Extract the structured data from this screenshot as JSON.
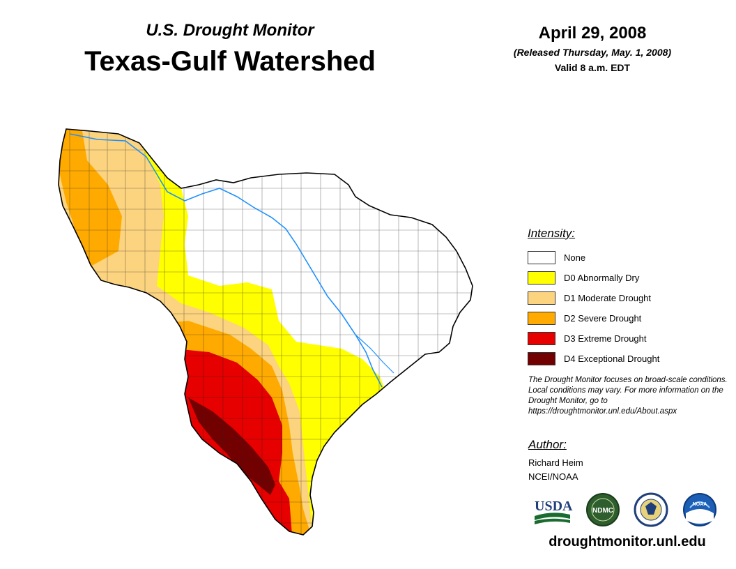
{
  "header": {
    "subtitle": "U.S. Drought Monitor",
    "title": "Texas-Gulf Watershed",
    "date": "April 29, 2008",
    "released": "(Released Thursday, May. 1, 2008)",
    "valid": "Valid 8 a.m. EDT"
  },
  "legend": {
    "title": "Intensity:",
    "items": [
      {
        "label": "None",
        "color": "#ffffff"
      },
      {
        "label": "D0 Abnormally Dry",
        "color": "#ffff00"
      },
      {
        "label": "D1 Moderate Drought",
        "color": "#fcd37f"
      },
      {
        "label": "D2 Severe Drought",
        "color": "#ffaa00"
      },
      {
        "label": "D3 Extreme Drought",
        "color": "#e60000"
      },
      {
        "label": "D4 Exceptional Drought",
        "color": "#730000"
      }
    ]
  },
  "note": "The Drought Monitor focuses on broad-scale conditions. Local conditions may vary. For more information on the Drought Monitor, go to https://droughtmonitor.unl.edu/About.aspx",
  "author": {
    "title": "Author:",
    "name": "Richard Heim",
    "org": "NCEI/NOAA"
  },
  "logos": {
    "usda": "USDA",
    "ndmc": "NDMC",
    "noaa": "NOAA"
  },
  "footer_url": "droughtmonitor.unl.edu",
  "colors": {
    "river": "#1e90ff",
    "border": "#000000"
  }
}
